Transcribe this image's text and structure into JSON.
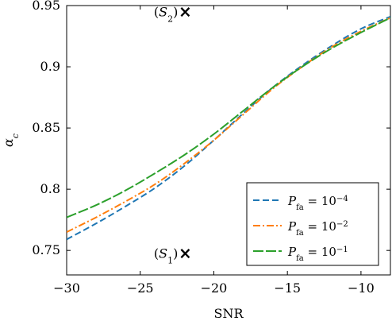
{
  "chart_data": {
    "type": "line",
    "xlabel": "SNR",
    "ylabel": "α_c",
    "xlim": [
      -30,
      -8
    ],
    "ylim": [
      0.73,
      0.95
    ],
    "xticks": [
      -30,
      -25,
      -20,
      -15,
      -10
    ],
    "xtick_labels": [
      "−30",
      "−25",
      "−20",
      "−15",
      "−10"
    ],
    "yticks": [
      0.75,
      0.8,
      0.85,
      0.9,
      0.95
    ],
    "ytick_labels": [
      "0.75",
      "0.8",
      "0.85",
      "0.9",
      "0.95"
    ],
    "grid": false,
    "legend_position": "bottom-right",
    "x": [
      -30,
      -28,
      -26,
      -24,
      -22,
      -20,
      -18,
      -16,
      -14,
      -12,
      -10,
      -8
    ],
    "series": [
      {
        "name": "P_fa = 10^-4",
        "color": "#1f77b4",
        "dash": "dashed",
        "values": [
          0.759,
          0.772,
          0.786,
          0.801,
          0.819,
          0.84,
          0.862,
          0.883,
          0.901,
          0.917,
          0.931,
          0.941
        ]
      },
      {
        "name": "P_fa = 10^-2",
        "color": "#ff7f0e",
        "dash": "dashdot",
        "values": [
          0.765,
          0.777,
          0.79,
          0.804,
          0.821,
          0.84,
          0.861,
          0.882,
          0.9,
          0.916,
          0.929,
          0.94
        ]
      },
      {
        "name": "P_fa = 10^-1",
        "color": "#2ca02c",
        "dash": "longdash",
        "values": [
          0.777,
          0.787,
          0.799,
          0.813,
          0.828,
          0.845,
          0.864,
          0.883,
          0.9,
          0.915,
          0.928,
          0.94
        ]
      }
    ],
    "annotations": [
      {
        "label": "(S2)",
        "x": -22,
        "y": 0.945,
        "marker": "×"
      },
      {
        "label": "(S1)",
        "x": -22,
        "y": 0.748,
        "marker": "×"
      }
    ]
  }
}
